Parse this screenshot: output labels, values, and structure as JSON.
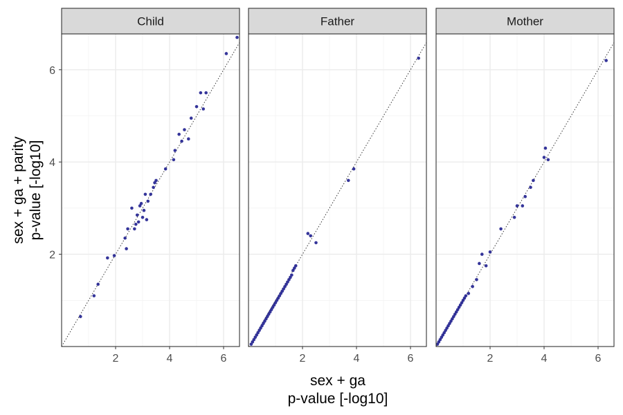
{
  "chart_data": {
    "type": "scatter",
    "facets": [
      {
        "label": "Child",
        "points": [
          [
            0.7,
            0.65
          ],
          [
            1.2,
            1.1
          ],
          [
            1.35,
            1.35
          ],
          [
            1.7,
            1.92
          ],
          [
            1.95,
            1.97
          ],
          [
            2.35,
            2.35
          ],
          [
            2.4,
            2.12
          ],
          [
            2.45,
            2.55
          ],
          [
            2.6,
            3.0
          ],
          [
            2.7,
            2.55
          ],
          [
            2.75,
            2.65
          ],
          [
            2.8,
            2.85
          ],
          [
            2.85,
            2.7
          ],
          [
            2.9,
            3.05
          ],
          [
            2.95,
            3.1
          ],
          [
            3.0,
            2.8
          ],
          [
            3.05,
            2.95
          ],
          [
            3.1,
            3.3
          ],
          [
            3.15,
            2.75
          ],
          [
            3.2,
            3.15
          ],
          [
            3.3,
            3.3
          ],
          [
            3.4,
            3.45
          ],
          [
            3.45,
            3.55
          ],
          [
            3.5,
            3.6
          ],
          [
            3.85,
            3.85
          ],
          [
            4.15,
            4.05
          ],
          [
            4.2,
            4.25
          ],
          [
            4.35,
            4.6
          ],
          [
            4.45,
            4.45
          ],
          [
            4.55,
            4.7
          ],
          [
            4.7,
            4.5
          ],
          [
            4.8,
            4.95
          ],
          [
            5.0,
            5.2
          ],
          [
            5.15,
            5.5
          ],
          [
            5.25,
            5.15
          ],
          [
            5.35,
            5.5
          ],
          [
            6.1,
            6.35
          ],
          [
            6.5,
            6.7
          ]
        ]
      },
      {
        "label": "Father",
        "points": [
          [
            0.1,
            0.05
          ],
          [
            0.15,
            0.1
          ],
          [
            0.2,
            0.15
          ],
          [
            0.25,
            0.2
          ],
          [
            0.3,
            0.25
          ],
          [
            0.35,
            0.3
          ],
          [
            0.4,
            0.35
          ],
          [
            0.45,
            0.4
          ],
          [
            0.5,
            0.45
          ],
          [
            0.55,
            0.5
          ],
          [
            0.6,
            0.55
          ],
          [
            0.65,
            0.6
          ],
          [
            0.7,
            0.65
          ],
          [
            0.75,
            0.7
          ],
          [
            0.8,
            0.75
          ],
          [
            0.85,
            0.8
          ],
          [
            0.9,
            0.85
          ],
          [
            0.95,
            0.9
          ],
          [
            1.0,
            0.95
          ],
          [
            1.05,
            1.0
          ],
          [
            1.1,
            1.05
          ],
          [
            1.15,
            1.1
          ],
          [
            1.2,
            1.15
          ],
          [
            1.25,
            1.2
          ],
          [
            1.3,
            1.25
          ],
          [
            1.35,
            1.3
          ],
          [
            1.4,
            1.35
          ],
          [
            1.45,
            1.4
          ],
          [
            1.5,
            1.45
          ],
          [
            1.55,
            1.5
          ],
          [
            1.6,
            1.55
          ],
          [
            1.65,
            1.65
          ],
          [
            1.7,
            1.7
          ],
          [
            1.75,
            1.75
          ],
          [
            2.2,
            2.45
          ],
          [
            2.3,
            2.4
          ],
          [
            2.5,
            2.25
          ],
          [
            3.7,
            3.6
          ],
          [
            3.9,
            3.85
          ],
          [
            6.3,
            6.25
          ]
        ]
      },
      {
        "label": "Mother",
        "points": [
          [
            0.05,
            0.05
          ],
          [
            0.1,
            0.1
          ],
          [
            0.15,
            0.15
          ],
          [
            0.2,
            0.2
          ],
          [
            0.25,
            0.25
          ],
          [
            0.3,
            0.3
          ],
          [
            0.35,
            0.35
          ],
          [
            0.4,
            0.4
          ],
          [
            0.45,
            0.45
          ],
          [
            0.5,
            0.5
          ],
          [
            0.55,
            0.55
          ],
          [
            0.6,
            0.6
          ],
          [
            0.65,
            0.65
          ],
          [
            0.7,
            0.7
          ],
          [
            0.75,
            0.75
          ],
          [
            0.8,
            0.8
          ],
          [
            0.85,
            0.85
          ],
          [
            0.9,
            0.9
          ],
          [
            0.95,
            0.95
          ],
          [
            1.0,
            1.0
          ],
          [
            1.05,
            1.05
          ],
          [
            1.1,
            1.1
          ],
          [
            1.2,
            1.15
          ],
          [
            1.35,
            1.3
          ],
          [
            1.5,
            1.45
          ],
          [
            1.6,
            1.8
          ],
          [
            1.7,
            2.0
          ],
          [
            1.85,
            1.75
          ],
          [
            2.0,
            2.05
          ],
          [
            2.4,
            2.55
          ],
          [
            2.9,
            2.8
          ],
          [
            3.0,
            3.05
          ],
          [
            3.2,
            3.05
          ],
          [
            3.3,
            3.25
          ],
          [
            3.5,
            3.45
          ],
          [
            3.6,
            3.6
          ],
          [
            4.0,
            4.1
          ],
          [
            4.05,
            4.3
          ],
          [
            4.15,
            4.05
          ],
          [
            6.3,
            6.2
          ]
        ]
      }
    ],
    "xlabel": [
      "sex + ga",
      "p-value [-log10]"
    ],
    "ylabel": [
      "sex + ga + parity",
      "p-value [-log10]"
    ],
    "x_ticks": [
      2,
      4,
      6
    ],
    "y_ticks": [
      2,
      4,
      6
    ],
    "xlim": [
      0,
      6.6
    ],
    "ylim": [
      0,
      6.9
    ],
    "reference_line": "y = x (dotted)",
    "point_color": "#1f1f8f",
    "strip_color": "#d9d9d9",
    "grid": true
  }
}
